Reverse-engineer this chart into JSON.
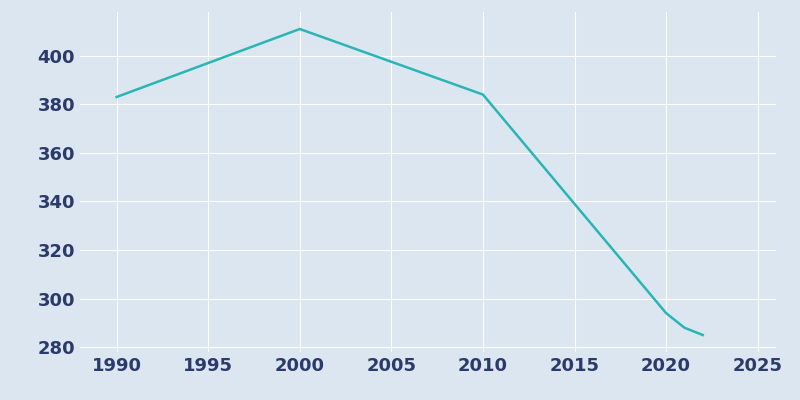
{
  "years": [
    1990,
    2000,
    2010,
    2020,
    2021,
    2022
  ],
  "population": [
    383,
    411,
    384,
    294,
    288,
    285
  ],
  "line_color": "#2ab5b5",
  "plot_bg_color": "#dce6f0",
  "fig_bg_color": "#dce6f0",
  "grid_color": "#ffffff",
  "tick_color": "#2b3a6b",
  "xlim": [
    1988,
    2026
  ],
  "ylim": [
    278,
    418
  ],
  "yticks": [
    280,
    300,
    320,
    340,
    360,
    380,
    400
  ],
  "xticks": [
    1990,
    1995,
    2000,
    2005,
    2010,
    2015,
    2020,
    2025
  ],
  "linewidth": 1.8,
  "tick_fontsize": 13
}
